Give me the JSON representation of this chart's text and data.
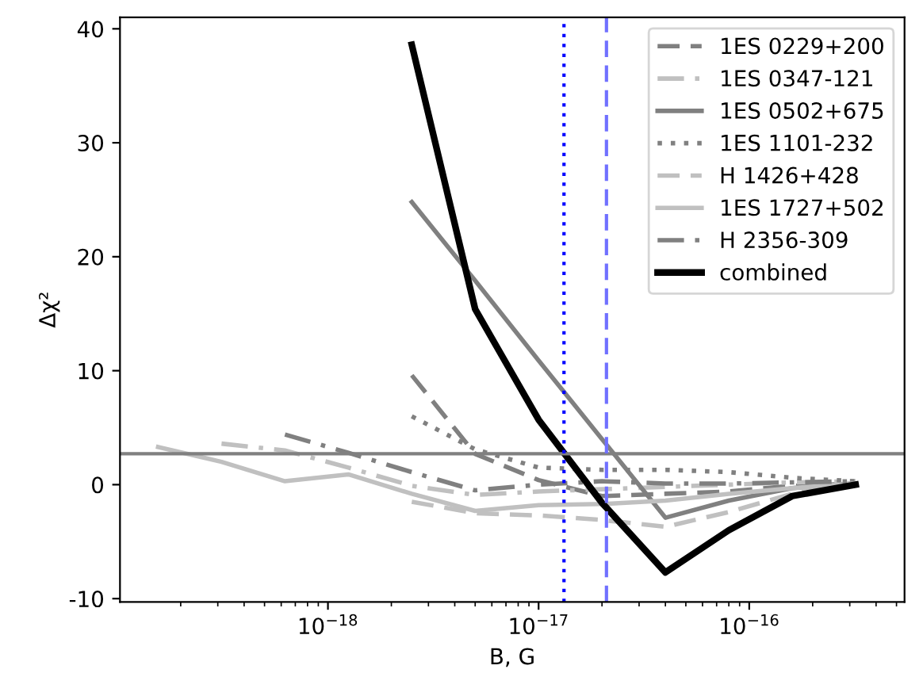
{
  "chart_data": {
    "type": "line",
    "xlabel": "B, G",
    "ylabel": "Δχ²",
    "log": "x",
    "xlim": [
      1.03e-19,
      5.46e-16
    ],
    "ylim": [
      -10.3,
      41
    ],
    "xticks": [
      {
        "value": 1e-18,
        "label": "10$^{−18}$"
      },
      {
        "value": 1e-17,
        "label": "10$^{−17}$"
      },
      {
        "value": 1e-16,
        "label": "10$^{−16}$"
      }
    ],
    "yticks": [
      -10,
      0,
      10,
      20,
      30,
      40
    ],
    "grid": false,
    "legend": "top right",
    "series": [
      {
        "name": "1ES 0229+200",
        "color": "#808080",
        "line_style": "dashed",
        "x": [
          2.5e-18,
          5e-18,
          1e-17,
          2e-17,
          4e-17,
          8e-17,
          1.6e-16,
          3.2e-16
        ],
        "values": [
          9.6,
          2.7,
          0.4,
          -1.0,
          -0.8,
          -0.6,
          -0.1,
          0.1
        ]
      },
      {
        "name": "1ES 0347-121",
        "color": "#c0c0c0",
        "line_style": "dashdot",
        "x": [
          3.125e-19,
          6.25e-19,
          1.25e-18,
          2.5e-18,
          5e-18,
          1e-17,
          2e-17,
          4e-17,
          8e-17,
          1.6e-16,
          3.2e-16
        ],
        "values": [
          3.6,
          3.0,
          1.5,
          -0.1,
          -0.9,
          -0.6,
          -0.4,
          -0.2,
          0.0,
          0.2,
          0.3
        ]
      },
      {
        "name": "1ES 0502+675",
        "color": "#808080",
        "line_style": "solid",
        "x": [
          2.5e-18,
          5e-18,
          1e-17,
          2e-17,
          4e-17,
          8e-17,
          1.6e-16,
          3.2e-16
        ],
        "values": [
          24.8,
          17.9,
          10.9,
          4.0,
          -2.9,
          -1.4,
          -0.3,
          0.1
        ]
      },
      {
        "name": "1ES 1101-232",
        "color": "#808080",
        "line_style": "dotted",
        "x": [
          2.5e-18,
          5e-18,
          1e-17,
          2e-17,
          4e-17,
          8e-17,
          1.6e-16,
          3.2e-16
        ],
        "values": [
          6.0,
          3.1,
          1.5,
          1.3,
          1.3,
          1.1,
          0.6,
          0.3
        ]
      },
      {
        "name": "H 1426+428",
        "color": "#c0c0c0",
        "line_style": "dashed",
        "x": [
          2.5e-18,
          5e-18,
          1e-17,
          2e-17,
          4e-17,
          8e-17,
          1.6e-16,
          3.2e-16
        ],
        "values": [
          -1.5,
          -2.5,
          -2.7,
          -3.1,
          -3.7,
          -2.4,
          -0.8,
          0.1
        ]
      },
      {
        "name": "1ES 1727+502",
        "color": "#c0c0c0",
        "line_style": "solid",
        "x": [
          1.5625e-19,
          3.125e-19,
          6.25e-19,
          1.25e-18,
          2.5e-18,
          5e-18,
          1e-17,
          2e-17,
          4e-17,
          8e-17,
          1.6e-16,
          3.2e-16
        ],
        "values": [
          3.3,
          2.0,
          0.3,
          0.9,
          -0.8,
          -2.3,
          -1.8,
          -1.7,
          -1.4,
          -0.8,
          -0.3,
          0.1
        ]
      },
      {
        "name": "H 2356-309",
        "color": "#808080",
        "line_style": "dashdot",
        "x": [
          6.25e-19,
          1.25e-18,
          2.5e-18,
          5e-18,
          1e-17,
          2e-17,
          4e-17,
          8e-17,
          1.6e-16,
          3.2e-16
        ],
        "values": [
          4.4,
          2.8,
          1.1,
          -0.5,
          0.0,
          0.3,
          0.1,
          0.1,
          0.2,
          0.3
        ]
      },
      {
        "name": "combined",
        "color": "#000000",
        "line_style": "solid",
        "x": [
          2.5e-18,
          5e-18,
          1e-17,
          2e-17,
          4e-17,
          8e-17,
          1.6e-16,
          3.2e-16
        ],
        "values": [
          38.6,
          15.4,
          5.7,
          -1.6,
          -7.7,
          -4.0,
          -1.0,
          0.0
        ]
      }
    ],
    "ref_lines": [
      {
        "axis": "y",
        "value": 2.71,
        "color": "#808080",
        "line_style": "solid"
      },
      {
        "axis": "x",
        "value": 1.32e-17,
        "color": "#0000ff",
        "line_style": "dotted"
      },
      {
        "axis": "x",
        "value": 2.1e-17,
        "color": "#7070ff",
        "line_style": "dashed"
      }
    ]
  }
}
